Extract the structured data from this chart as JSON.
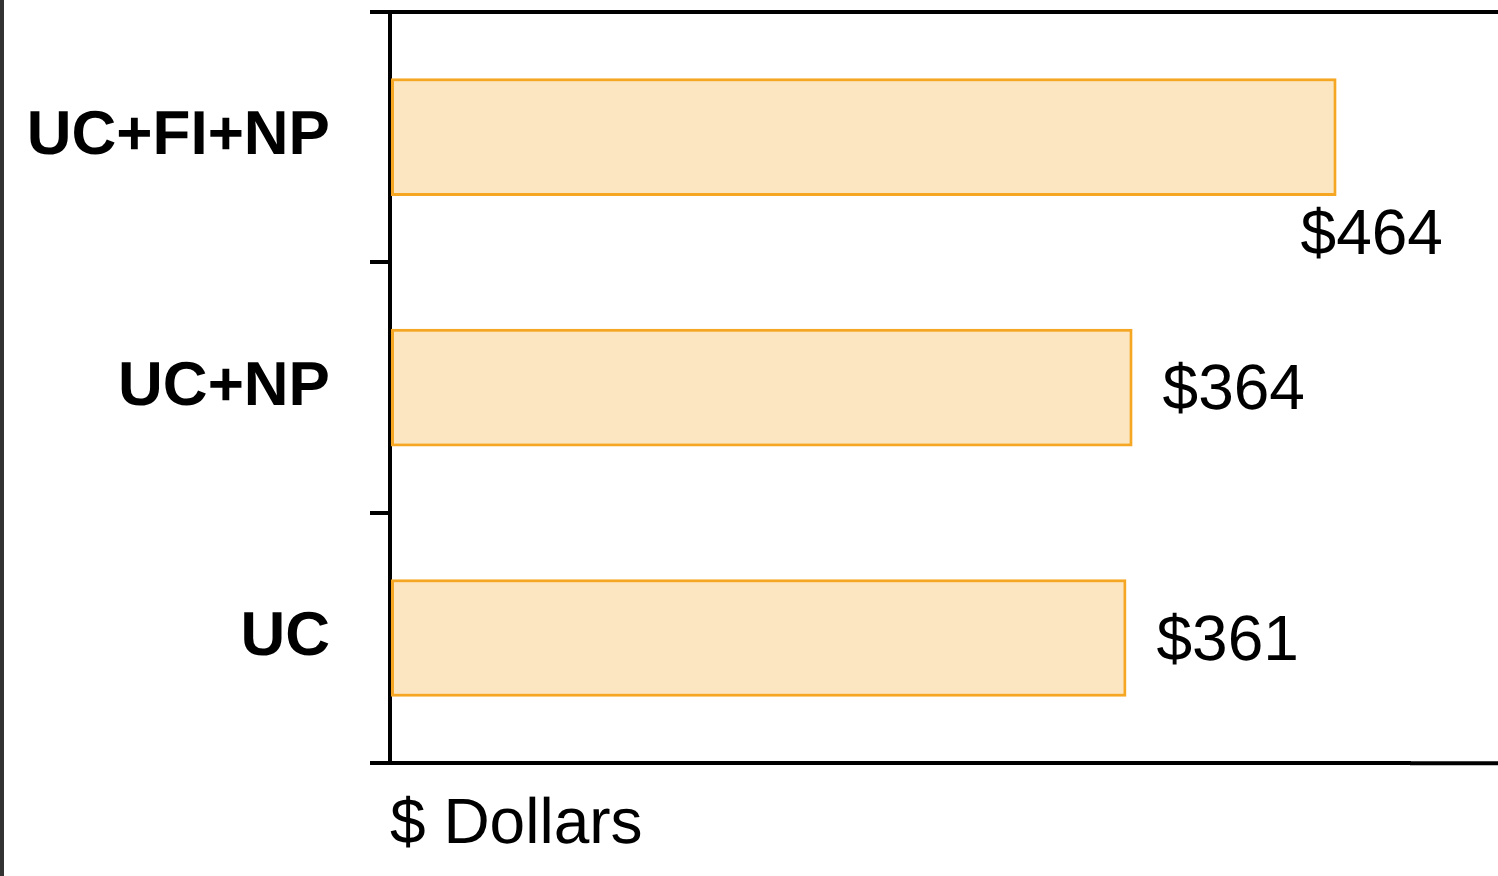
{
  "chart_data": {
    "type": "bar",
    "orientation": "horizontal",
    "xlabel": "$ Dollars",
    "categories": [
      "UC+FI+NP",
      "UC+NP",
      "UC"
    ],
    "values": [
      464,
      364,
      361
    ],
    "color": "#f5a623",
    "value_labels": [
      "$464",
      "$364",
      "$361"
    ],
    "tick_labels": "y"
  }
}
